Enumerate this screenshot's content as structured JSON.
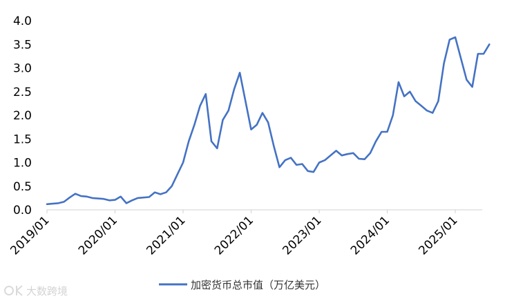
{
  "chart_data": {
    "type": "line",
    "ylim": [
      0,
      4.0
    ],
    "y_ticks": [
      "0.0",
      "0.5",
      "1.0",
      "1.5",
      "2.0",
      "2.5",
      "3.0",
      "3.5",
      "4.0"
    ],
    "x_tick_labels": [
      "2019/01",
      "2020/01",
      "2021/01",
      "2022/01",
      "2023/01",
      "2024/01",
      "2025/01"
    ],
    "x_range": [
      "2019/01",
      "2025/07"
    ],
    "grid": false,
    "legend_position": "bottom",
    "series": [
      {
        "name": "加密货币总市值（万亿美元）",
        "color": "#4472C4",
        "points": [
          [
            "2019/01",
            0.12
          ],
          [
            "2019/02",
            0.13
          ],
          [
            "2019/03",
            0.14
          ],
          [
            "2019/04",
            0.17
          ],
          [
            "2019/05",
            0.26
          ],
          [
            "2019/06",
            0.34
          ],
          [
            "2019/07",
            0.29
          ],
          [
            "2019/08",
            0.28
          ],
          [
            "2019/09",
            0.25
          ],
          [
            "2019/10",
            0.24
          ],
          [
            "2019/11",
            0.23
          ],
          [
            "2019/12",
            0.2
          ],
          [
            "2020/01",
            0.21
          ],
          [
            "2020/02",
            0.28
          ],
          [
            "2020/03",
            0.14
          ],
          [
            "2020/04",
            0.2
          ],
          [
            "2020/05",
            0.25
          ],
          [
            "2020/06",
            0.26
          ],
          [
            "2020/07",
            0.27
          ],
          [
            "2020/08",
            0.37
          ],
          [
            "2020/09",
            0.33
          ],
          [
            "2020/10",
            0.37
          ],
          [
            "2020/11",
            0.5
          ],
          [
            "2020/12",
            0.75
          ],
          [
            "2021/01",
            1.0
          ],
          [
            "2021/02",
            1.45
          ],
          [
            "2021/03",
            1.8
          ],
          [
            "2021/04",
            2.2
          ],
          [
            "2021/05",
            2.45
          ],
          [
            "2021/06",
            1.45
          ],
          [
            "2021/07",
            1.3
          ],
          [
            "2021/08",
            1.9
          ],
          [
            "2021/09",
            2.1
          ],
          [
            "2021/10",
            2.55
          ],
          [
            "2021/11",
            2.9
          ],
          [
            "2021/12",
            2.3
          ],
          [
            "2022/01",
            1.7
          ],
          [
            "2022/02",
            1.8
          ],
          [
            "2022/03",
            2.05
          ],
          [
            "2022/04",
            1.85
          ],
          [
            "2022/05",
            1.35
          ],
          [
            "2022/06",
            0.9
          ],
          [
            "2022/07",
            1.05
          ],
          [
            "2022/08",
            1.1
          ],
          [
            "2022/09",
            0.95
          ],
          [
            "2022/10",
            0.97
          ],
          [
            "2022/11",
            0.82
          ],
          [
            "2022/12",
            0.8
          ],
          [
            "2023/01",
            1.0
          ],
          [
            "2023/02",
            1.05
          ],
          [
            "2023/03",
            1.15
          ],
          [
            "2023/04",
            1.25
          ],
          [
            "2023/05",
            1.15
          ],
          [
            "2023/06",
            1.18
          ],
          [
            "2023/07",
            1.2
          ],
          [
            "2023/08",
            1.08
          ],
          [
            "2023/09",
            1.07
          ],
          [
            "2023/10",
            1.2
          ],
          [
            "2023/11",
            1.45
          ],
          [
            "2023/12",
            1.65
          ],
          [
            "2024/01",
            1.65
          ],
          [
            "2024/02",
            2.0
          ],
          [
            "2024/03",
            2.7
          ],
          [
            "2024/04",
            2.4
          ],
          [
            "2024/05",
            2.5
          ],
          [
            "2024/06",
            2.3
          ],
          [
            "2024/07",
            2.2
          ],
          [
            "2024/08",
            2.1
          ],
          [
            "2024/09",
            2.05
          ],
          [
            "2024/10",
            2.3
          ],
          [
            "2024/11",
            3.1
          ],
          [
            "2024/12",
            3.6
          ],
          [
            "2025/01",
            3.65
          ],
          [
            "2025/02",
            3.2
          ],
          [
            "2025/03",
            2.75
          ],
          [
            "2025/04",
            2.6
          ],
          [
            "2025/05",
            3.3
          ],
          [
            "2025/06",
            3.3
          ],
          [
            "2025/07",
            3.5
          ]
        ]
      }
    ]
  },
  "watermark": {
    "text": "大数跨境",
    "icon": "brand-logo-icon"
  }
}
